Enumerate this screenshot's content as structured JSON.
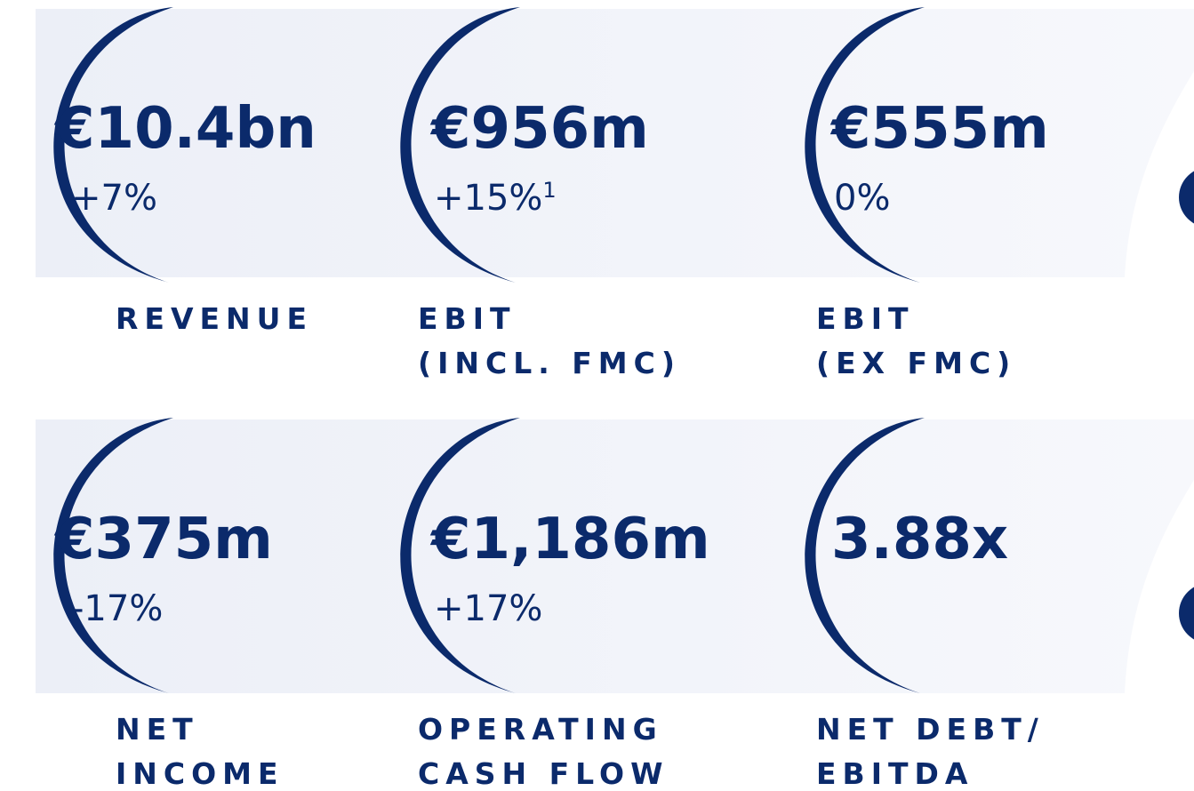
{
  "kpis": [
    {
      "value": "€10.4bn",
      "change": "+7%",
      "label": [
        "REVENUE"
      ]
    },
    {
      "value": "€956m",
      "change": "+15%",
      "footnote": "1",
      "label": [
        "EBIT",
        "(INCL. FMC)"
      ]
    },
    {
      "value": "€555m",
      "change": "0%",
      "label": [
        "EBIT",
        "(EX FMC)"
      ]
    },
    {
      "value": "€375m",
      "change": "-17%",
      "label": [
        "NET",
        "INCOME"
      ]
    },
    {
      "value": "€1,186m",
      "change": "+17%",
      "label": [
        "OPERATING",
        "CASH FLOW"
      ]
    },
    {
      "value": "3.88x",
      "label": [
        "NET DEBT/",
        "EBITDA"
      ]
    }
  ]
}
